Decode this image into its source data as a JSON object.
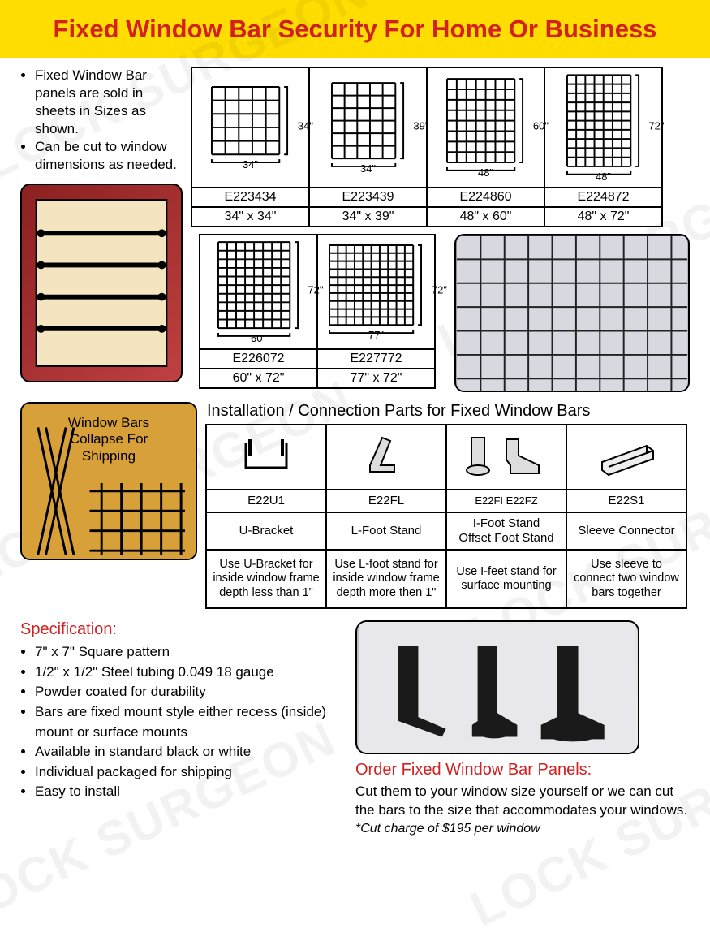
{
  "header": {
    "title": "Fixed Window Bar Security For Home Or Business"
  },
  "intro": {
    "bullet1": "Fixed Window Bar panels are sold in sheets in Sizes as shown.",
    "bullet2": "Can be cut to window dimensions as needed."
  },
  "sizes_row1": [
    {
      "code": "E223434",
      "dim": "34\" x 34\"",
      "w": "34\"",
      "h": "34\"",
      "gw": 85,
      "gh": 85,
      "cols": 5,
      "rows": 5
    },
    {
      "code": "E223439",
      "dim": "34\" x 39\"",
      "w": "34\"",
      "h": "39\"",
      "gw": 80,
      "gh": 95,
      "cols": 5,
      "rows": 6
    },
    {
      "code": "E224860",
      "dim": "48\" x 60\"",
      "w": "48\"",
      "h": "60\"",
      "gw": 85,
      "gh": 105,
      "cols": 7,
      "rows": 8
    },
    {
      "code": "E224872",
      "dim": "48\" x 72\"",
      "w": "48\"",
      "h": "72\"",
      "gw": 80,
      "gh": 115,
      "cols": 7,
      "rows": 10
    }
  ],
  "sizes_row2": [
    {
      "code": "E226072",
      "dim": "60\" x 72\"",
      "w": "60\"",
      "h": "72\"",
      "gw": 90,
      "gh": 108,
      "cols": 8,
      "rows": 10
    },
    {
      "code": "E227772",
      "dim": "77\" x 72\"",
      "w": "77\"",
      "h": "72\"",
      "gw": 105,
      "gh": 100,
      "cols": 10,
      "rows": 10
    }
  ],
  "collapse_label": "Window Bars\nCollapse For\nShipping",
  "install": {
    "title": "Installation / Connection Parts for Fixed Window Bars",
    "items": [
      {
        "code": "E22U1",
        "name": "U-Bracket",
        "desc": "Use U-Bracket for inside window frame depth less than 1\""
      },
      {
        "code": "E22FL",
        "name": "L-Foot Stand",
        "desc": "Use L-foot stand for inside window frame depth more then 1\""
      },
      {
        "code": "E22FI    E22FZ",
        "name": "I-Foot Stand\nOffset Foot Stand",
        "desc": "Use I-feet stand for surface mounting"
      },
      {
        "code": "E22S1",
        "name": "Sleeve Connector",
        "desc": "Use sleeve to connect two window bars together"
      }
    ]
  },
  "spec": {
    "title": "Specification:",
    "items": [
      "7\" x 7\" Square pattern",
      "1/2\" x 1/2\" Steel tubing 0.049  18 gauge",
      "Powder coated for durability",
      "Bars are fixed mount style either recess (inside) mount or surface mounts",
      "Available in standard black or white",
      "Individual packaged for shipping",
      "Easy to install"
    ]
  },
  "order": {
    "title": "Order Fixed Window Bar Panels:",
    "text": "Cut them to your window size yourself or we can cut the bars to the size that accommodates your windows.",
    "note": "*Cut charge of $195 per window"
  },
  "colors": {
    "accent_red": "#d32020",
    "header_yellow": "#ffdd00",
    "border": "#000000"
  }
}
